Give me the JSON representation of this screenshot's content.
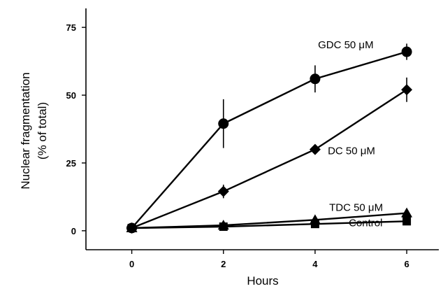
{
  "chart_data": {
    "type": "line",
    "title": "",
    "xlabel": "Hours",
    "ylabel_line1": "Nuclear fragmentation",
    "ylabel_line2": "(% of total)",
    "x": [
      0,
      2,
      4,
      6
    ],
    "xlim": [
      -1,
      6.7
    ],
    "ylim": [
      -7,
      82
    ],
    "x_ticks": [
      0,
      2,
      4,
      6
    ],
    "y_ticks": [
      0,
      25,
      50,
      75
    ],
    "series": [
      {
        "name": "GDC 50 μM",
        "marker": "circle",
        "values": [
          1,
          39.5,
          56,
          66
        ],
        "errors": [
          0,
          9,
          5,
          3
        ]
      },
      {
        "name": "DC 50 μM",
        "marker": "diamond",
        "values": [
          1,
          14.5,
          30,
          52
        ],
        "errors": [
          0,
          2.5,
          1.5,
          4.5
        ]
      },
      {
        "name": "TDC 50 μM",
        "marker": "triangle",
        "values": [
          1,
          2,
          4,
          6.5
        ],
        "errors": [
          0,
          0,
          0,
          0
        ]
      },
      {
        "name": "Control",
        "marker": "square",
        "values": [
          1,
          1.5,
          2.5,
          3.5
        ],
        "errors": [
          0,
          0,
          0,
          0
        ]
      }
    ]
  }
}
